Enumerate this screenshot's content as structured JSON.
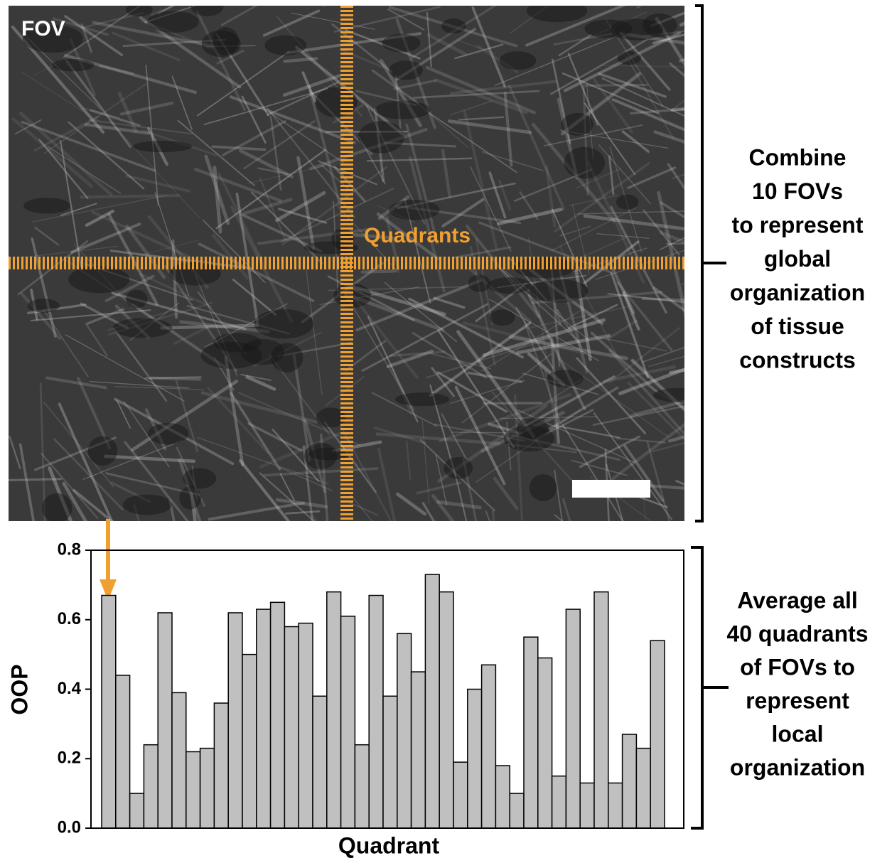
{
  "figure": {
    "image_label": "FOV",
    "overlay_label": "Quadrants",
    "global_note": [
      "Combine",
      "10 FOVs",
      "to represent",
      "global",
      "organization",
      "of tissue",
      "constructs"
    ],
    "local_note": [
      "Average all",
      "40 quadrants",
      "of FOVs to",
      "represent",
      "local",
      "organization"
    ]
  },
  "chart_data": {
    "type": "bar",
    "xlabel": "Quadrant",
    "ylabel": "OOP",
    "values": [
      0.67,
      0.44,
      0.1,
      0.24,
      0.62,
      0.39,
      0.22,
      0.23,
      0.36,
      0.62,
      0.5,
      0.63,
      0.65,
      0.58,
      0.59,
      0.38,
      0.68,
      0.61,
      0.24,
      0.67,
      0.38,
      0.56,
      0.45,
      0.73,
      0.68,
      0.19,
      0.4,
      0.47,
      0.18,
      0.1,
      0.55,
      0.49,
      0.15,
      0.63,
      0.13,
      0.68,
      0.13,
      0.27,
      0.23,
      0.54
    ],
    "color": "#c0c0c0",
    "ylim": [
      0,
      0.8
    ],
    "yticks": [
      {
        "value": 0,
        "label": "0.0"
      },
      0.2,
      0.4,
      0.6,
      0.8
    ],
    "grid": false
  }
}
